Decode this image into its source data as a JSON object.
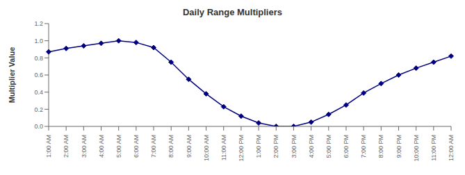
{
  "chart_data": {
    "type": "line",
    "title": "Daily Range Multipliers",
    "ylabel": "Multiplier Value",
    "categories": [
      "1:00 AM",
      "2:00 AM",
      "3:00 AM",
      "4:00 AM",
      "5:00 AM",
      "6:00 AM",
      "7:00 AM",
      "8:00 AM",
      "9:00 AM",
      "10:00 AM",
      "11:00 AM",
      "12:00 PM",
      "1:00 PM",
      "2:00 PM",
      "3:00 PM",
      "4:00 PM",
      "5:00 PM",
      "6:00 PM",
      "7:00 PM",
      "8:00 PM",
      "9:00 PM",
      "10:00 PM",
      "11:00 PM",
      "12:00 AM"
    ],
    "values": [
      0.87,
      0.91,
      0.94,
      0.97,
      1.0,
      0.98,
      0.92,
      0.75,
      0.55,
      0.38,
      0.23,
      0.12,
      0.04,
      0.0,
      0.0,
      0.05,
      0.14,
      0.25,
      0.39,
      0.5,
      0.6,
      0.68,
      0.75,
      0.82
    ],
    "color": "#000080",
    "marker": "diamond",
    "ylim": [
      0,
      1.2
    ],
    "yticks": [
      {
        "value": 0,
        "label": "0.0"
      },
      0.2,
      0.4,
      0.6,
      0.8,
      {
        "value": 1.0,
        "label": "1.0"
      },
      1.2
    ],
    "grid": false
  }
}
